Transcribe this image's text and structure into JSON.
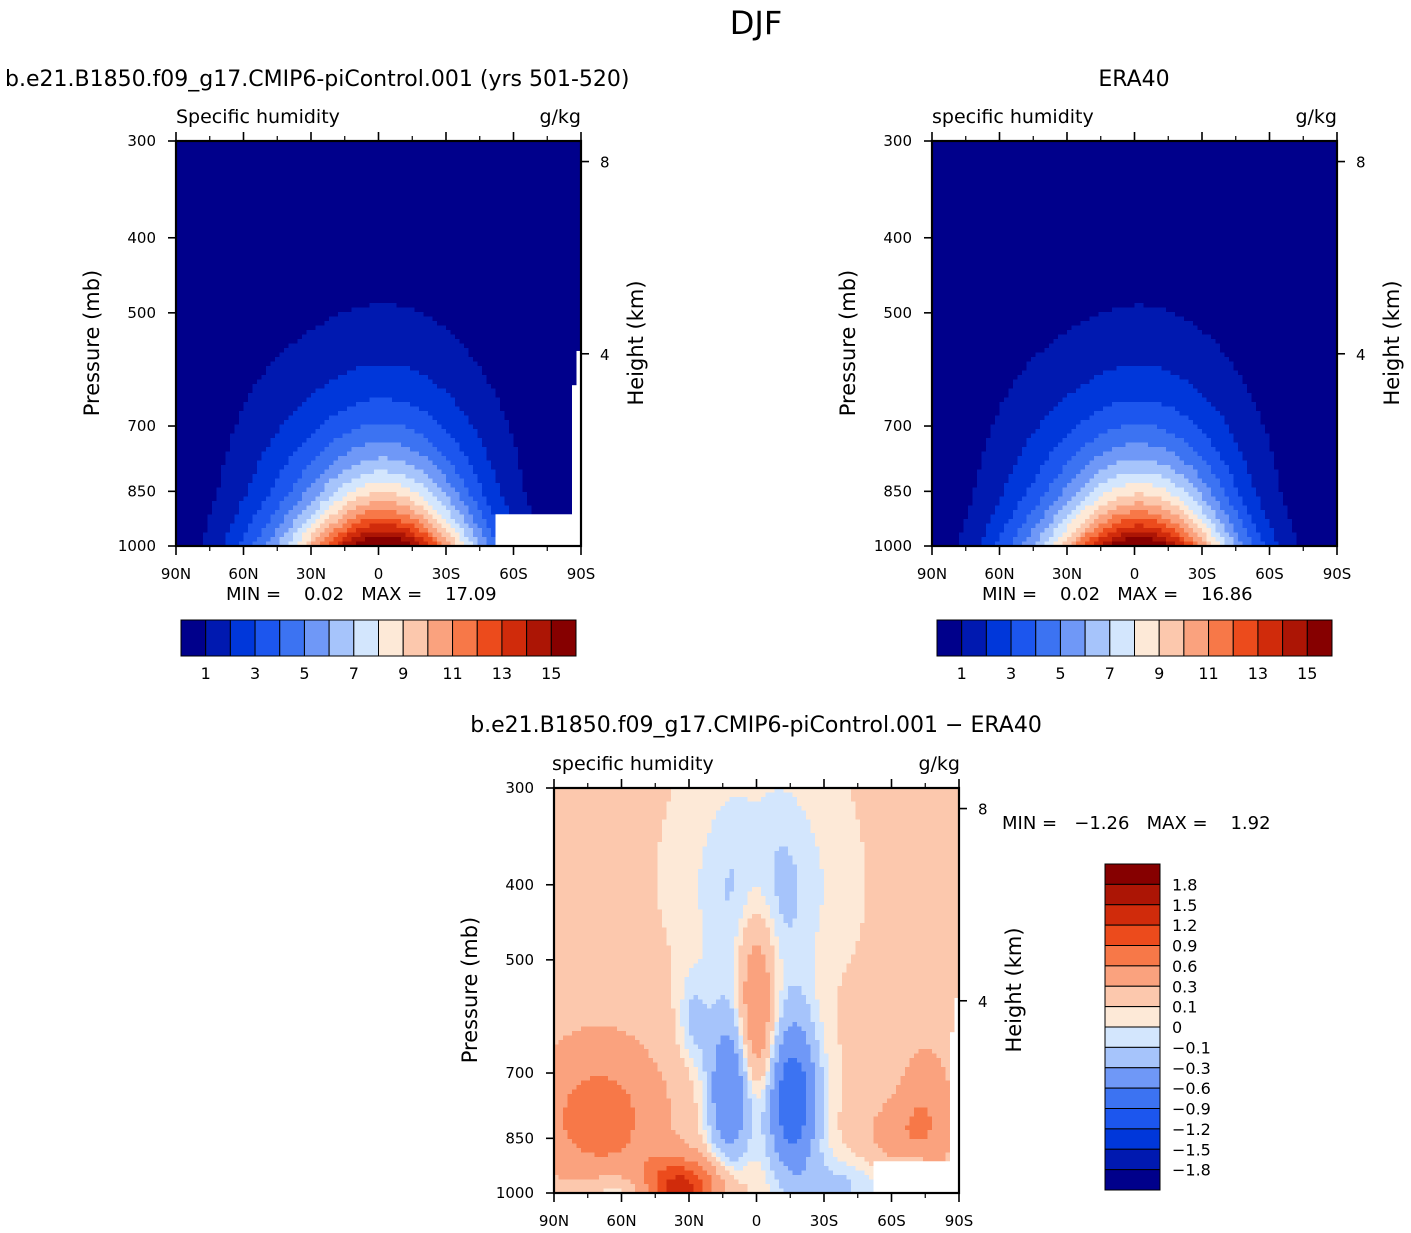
{
  "chart_data": {
    "type": "heatmap",
    "title": "DJF",
    "panels": [
      {
        "id": "model",
        "header": "b.e21.B1850.f09_g17.CMIP6-piControl.001 (yrs 501-520)",
        "left_label": "Specific humidity",
        "right_label": "g/kg",
        "ylabel": "Pressure (mb)",
        "y2label": "Height (km)",
        "x_ticks": [
          "90N",
          "60N",
          "30N",
          "0",
          "30S",
          "60S",
          "90S"
        ],
        "x_values": [
          -90,
          -60,
          -30,
          0,
          30,
          60,
          90
        ],
        "y_ticks": [
          "300",
          "400",
          "500",
          "700",
          "850",
          "1000"
        ],
        "y_values": [
          300,
          400,
          500,
          700,
          850,
          1000
        ],
        "y2_ticks": [
          "8",
          "4"
        ],
        "stats_text": "MIN =    0.02   MAX =    17.09",
        "min": 0.02,
        "max": 17.09,
        "peak_lat": 2,
        "colorbar_labels": [
          "1",
          "3",
          "5",
          "7",
          "9",
          "11",
          "13",
          "15"
        ]
      },
      {
        "id": "obs",
        "header": "ERA40",
        "left_label": "specific humidity",
        "right_label": "g/kg",
        "ylabel": "Pressure (mb)",
        "y2label": "Height (km)",
        "x_ticks": [
          "90N",
          "60N",
          "30N",
          "0",
          "30S",
          "60S",
          "90S"
        ],
        "x_values": [
          -90,
          -60,
          -30,
          0,
          30,
          60,
          90
        ],
        "y_ticks": [
          "300",
          "400",
          "500",
          "700",
          "850",
          "1000"
        ],
        "y_values": [
          300,
          400,
          500,
          700,
          850,
          1000
        ],
        "y2_ticks": [
          "8",
          "4"
        ],
        "stats_text": "MIN =    0.02   MAX =    16.86",
        "min": 0.02,
        "max": 16.86,
        "peak_lat": 2,
        "colorbar_labels": [
          "1",
          "3",
          "5",
          "7",
          "9",
          "11",
          "13",
          "15"
        ]
      },
      {
        "id": "diff",
        "header": "b.e21.B1850.f09_g17.CMIP6-piControl.001 − ERA40",
        "left_label": "specific humidity",
        "right_label": "g/kg",
        "ylabel": "Pressure (mb)",
        "y2label": "Height (km)",
        "x_ticks": [
          "90N",
          "60N",
          "30N",
          "0",
          "30S",
          "60S",
          "90S"
        ],
        "x_values": [
          -90,
          -60,
          -30,
          0,
          30,
          60,
          90
        ],
        "y_ticks": [
          "300",
          "400",
          "500",
          "700",
          "850",
          "1000"
        ],
        "y_values": [
          300,
          400,
          500,
          700,
          850,
          1000
        ],
        "y2_ticks": [
          "8",
          "4"
        ],
        "stats_text": "MIN =   −1.26   MAX =    1.92",
        "min": -1.26,
        "max": 1.92,
        "colorbar_labels": [
          "1.8",
          "1.5",
          "1.2",
          "0.9",
          "0.6",
          "0.3",
          "0.1",
          "0",
          "−0.1",
          "−0.3",
          "−0.6",
          "−0.9",
          "−1.2",
          "−1.5",
          "−1.8"
        ]
      }
    ],
    "abs_levels": [
      1,
      2,
      3,
      4,
      5,
      6,
      7,
      8,
      9,
      10,
      11,
      12,
      13,
      14,
      15
    ],
    "diff_levels": [
      -1.8,
      -1.5,
      -1.2,
      -0.9,
      -0.6,
      -0.3,
      -0.1,
      0,
      0.1,
      0.3,
      0.6,
      0.9,
      1.2,
      1.5,
      1.8
    ],
    "abs_colors": [
      "#00008b",
      "#0019b0",
      "#0037da",
      "#1c56ee",
      "#3c73f2",
      "#6f98f7",
      "#a6c4fb",
      "#d3e6fd",
      "#fde9d7",
      "#fcc8ad",
      "#faa27e",
      "#f77848",
      "#ec4b1c",
      "#d02b0b",
      "#ac1505",
      "#860000"
    ],
    "diff_colors": [
      "#00008b",
      "#0019b0",
      "#0037da",
      "#1c56ee",
      "#3c73f2",
      "#6f98f7",
      "#a6c4fb",
      "#d3e6fd",
      "#fde9d7",
      "#fcc8ad",
      "#faa27e",
      "#f77848",
      "#ec4b1c",
      "#d02b0b",
      "#ac1505",
      "#860000"
    ]
  }
}
